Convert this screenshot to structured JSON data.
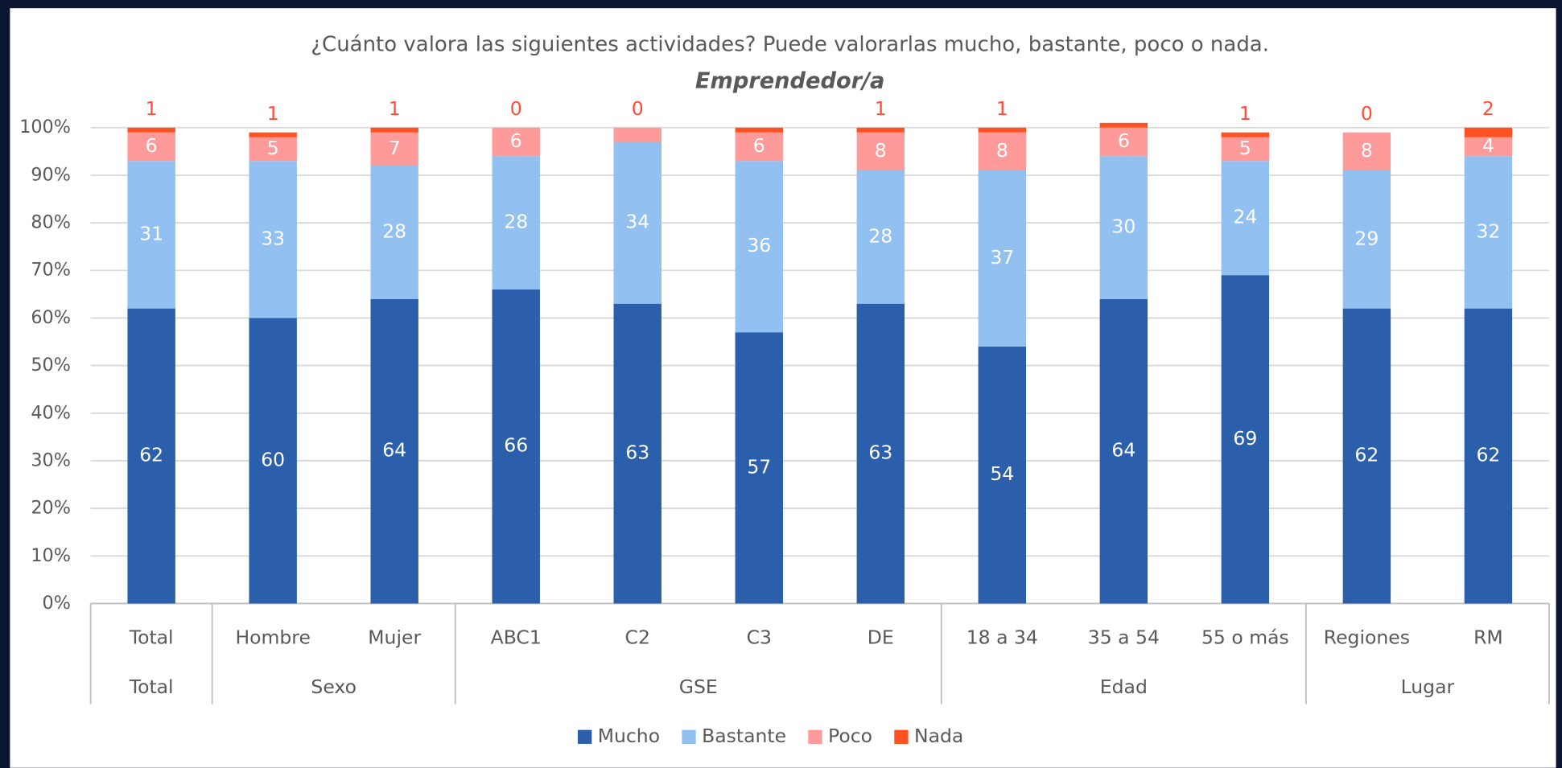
{
  "chart_data": {
    "type": "stacked_bar",
    "title": "¿Cuánto valora las siguientes actividades? Puede valorarlas mucho, bastante, poco o nada.",
    "subtitle": "Emprendedor/a",
    "categories": [
      "Total",
      "Hombre",
      "Mujer",
      "ABC1",
      "C2",
      "C3",
      "DE",
      "18 a 34",
      "35 a 54",
      "55 o más",
      "Regiones",
      "RM"
    ],
    "groups": [
      {
        "name": "Total",
        "span": 1
      },
      {
        "name": "Sexo",
        "span": 2
      },
      {
        "name": "GSE",
        "span": 4
      },
      {
        "name": "Edad",
        "span": 3
      },
      {
        "name": "Lugar",
        "span": 2
      }
    ],
    "series": [
      {
        "name": "Mucho",
        "color": "#2b5fab",
        "values": [
          62,
          60,
          64,
          66,
          63,
          57,
          63,
          54,
          64,
          69,
          62,
          62
        ]
      },
      {
        "name": "Bastante",
        "color": "#92c0f0",
        "values": [
          31,
          33,
          28,
          28,
          34,
          36,
          28,
          37,
          30,
          24,
          29,
          32
        ]
      },
      {
        "name": "Poco",
        "color": "#ff9a9a",
        "values": [
          6,
          5,
          7,
          6,
          3,
          6,
          8,
          8,
          6,
          5,
          8,
          4
        ],
        "value_labels": [
          "6",
          "5",
          "7",
          "6",
          null,
          "6",
          "8",
          "8",
          "6",
          "5",
          "8",
          "4"
        ]
      },
      {
        "name": "Nada",
        "color": "#ff5122",
        "values": [
          1,
          1,
          1,
          0,
          0,
          1,
          1,
          1,
          1,
          1,
          0,
          2
        ],
        "value_labels": [
          "1",
          "1",
          "1",
          "0",
          "0",
          null,
          "1",
          "1",
          null,
          "1",
          "0",
          "2"
        ]
      }
    ],
    "ylim": [
      0,
      100
    ],
    "yticks": [
      {
        "value": 0,
        "label": "0%"
      },
      {
        "value": 10,
        "label": "10%"
      },
      {
        "value": 20,
        "label": "20%"
      },
      {
        "value": 30,
        "label": "30%"
      },
      {
        "value": 40,
        "label": "40%"
      },
      {
        "value": 50,
        "label": "50%"
      },
      {
        "value": 60,
        "label": "60%"
      },
      {
        "value": 70,
        "label": "70%"
      },
      {
        "value": 80,
        "label": "80%"
      },
      {
        "value": 90,
        "label": "90%"
      },
      {
        "value": 100,
        "label": "100%"
      }
    ],
    "grid": true,
    "legend": "bottom"
  }
}
